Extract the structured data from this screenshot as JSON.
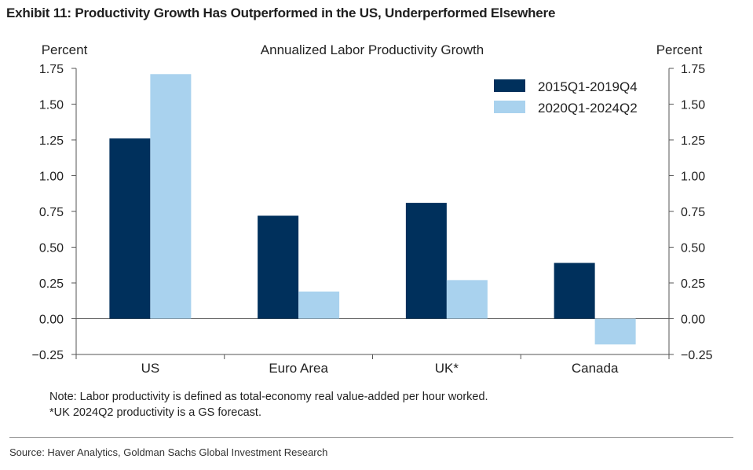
{
  "exhibit": {
    "title": "Exhibit 11: Productivity Growth Has Outperformed in the US, Underperformed Elsewhere"
  },
  "notes": [
    "Note: Labor productivity is defined as total-economy real value-added per hour worked.",
    "*UK 2024Q2 productivity is a GS forecast."
  ],
  "source": "Source: Haver Analytics, Goldman Sachs Global Investment Research",
  "colors": {
    "series1": "#00305c",
    "series2": "#a9d2ee"
  },
  "chart_data": {
    "type": "bar",
    "title": "Annualized Labor Productivity Growth",
    "ylabel_left": "Percent",
    "ylabel_right": "Percent",
    "categories": [
      "US",
      "Euro Area",
      "UK*",
      "Canada"
    ],
    "series": [
      {
        "name": "2015Q1-2019Q4",
        "values": [
          1.26,
          0.72,
          0.81,
          0.39
        ]
      },
      {
        "name": "2020Q1-2024Q2",
        "values": [
          1.71,
          0.19,
          0.27,
          -0.18
        ]
      }
    ],
    "ylim": [
      -0.25,
      1.75
    ],
    "yticks": [
      1.75,
      1.5,
      1.25,
      1.0,
      0.75,
      0.5,
      0.25,
      0.0,
      -0.25
    ],
    "ytick_labels": [
      "1.75",
      "1.50",
      "1.25",
      "1.00",
      "0.75",
      "0.50",
      "0.25",
      "0.00",
      "−0.25"
    ],
    "legend_position": "top-right",
    "grid": false
  }
}
